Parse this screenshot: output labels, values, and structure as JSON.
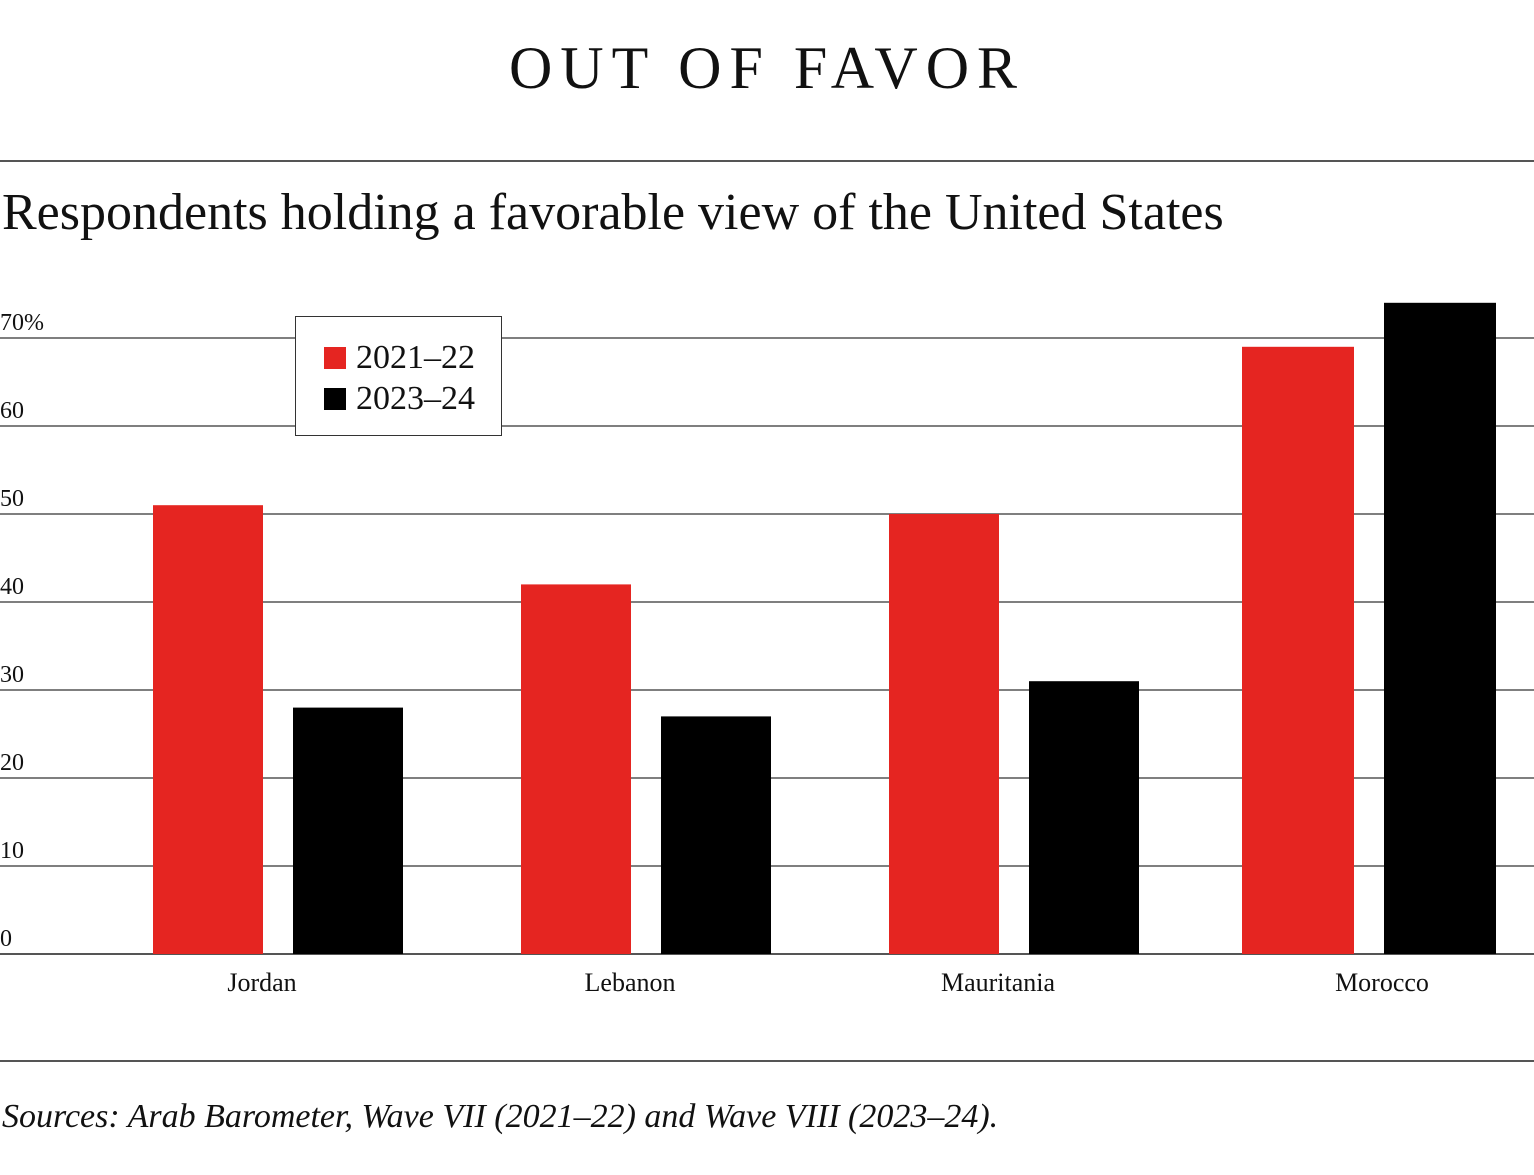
{
  "headline": "OUT OF FAVOR",
  "source": "Sources: Arab Barometer, Wave VII (2021–22) and Wave VIII (2023–24).",
  "colors": {
    "series_2021": "#e52521",
    "series_2023": "#000000",
    "gridline": "#555555"
  },
  "chart_data": {
    "type": "bar",
    "title": "Respondents holding a favorable view of the United States",
    "xlabel": "",
    "ylabel": "",
    "categories": [
      "Jordan",
      "Lebanon",
      "Mauritania",
      "Morocco"
    ],
    "series": [
      {
        "name": "2021–22",
        "color": "#e52521",
        "values": [
          51,
          42,
          50,
          69
        ]
      },
      {
        "name": "2023–24",
        "color": "#000000",
        "values": [
          28,
          27,
          31,
          74
        ]
      }
    ],
    "ylim": [
      0,
      70
    ],
    "yticks": [
      0,
      10,
      20,
      30,
      40,
      50,
      60,
      70
    ],
    "ytick_labels": [
      "0",
      "10",
      "20",
      "30",
      "40",
      "50",
      "60",
      "70%"
    ],
    "grid": true,
    "legend_position": "top-left"
  }
}
